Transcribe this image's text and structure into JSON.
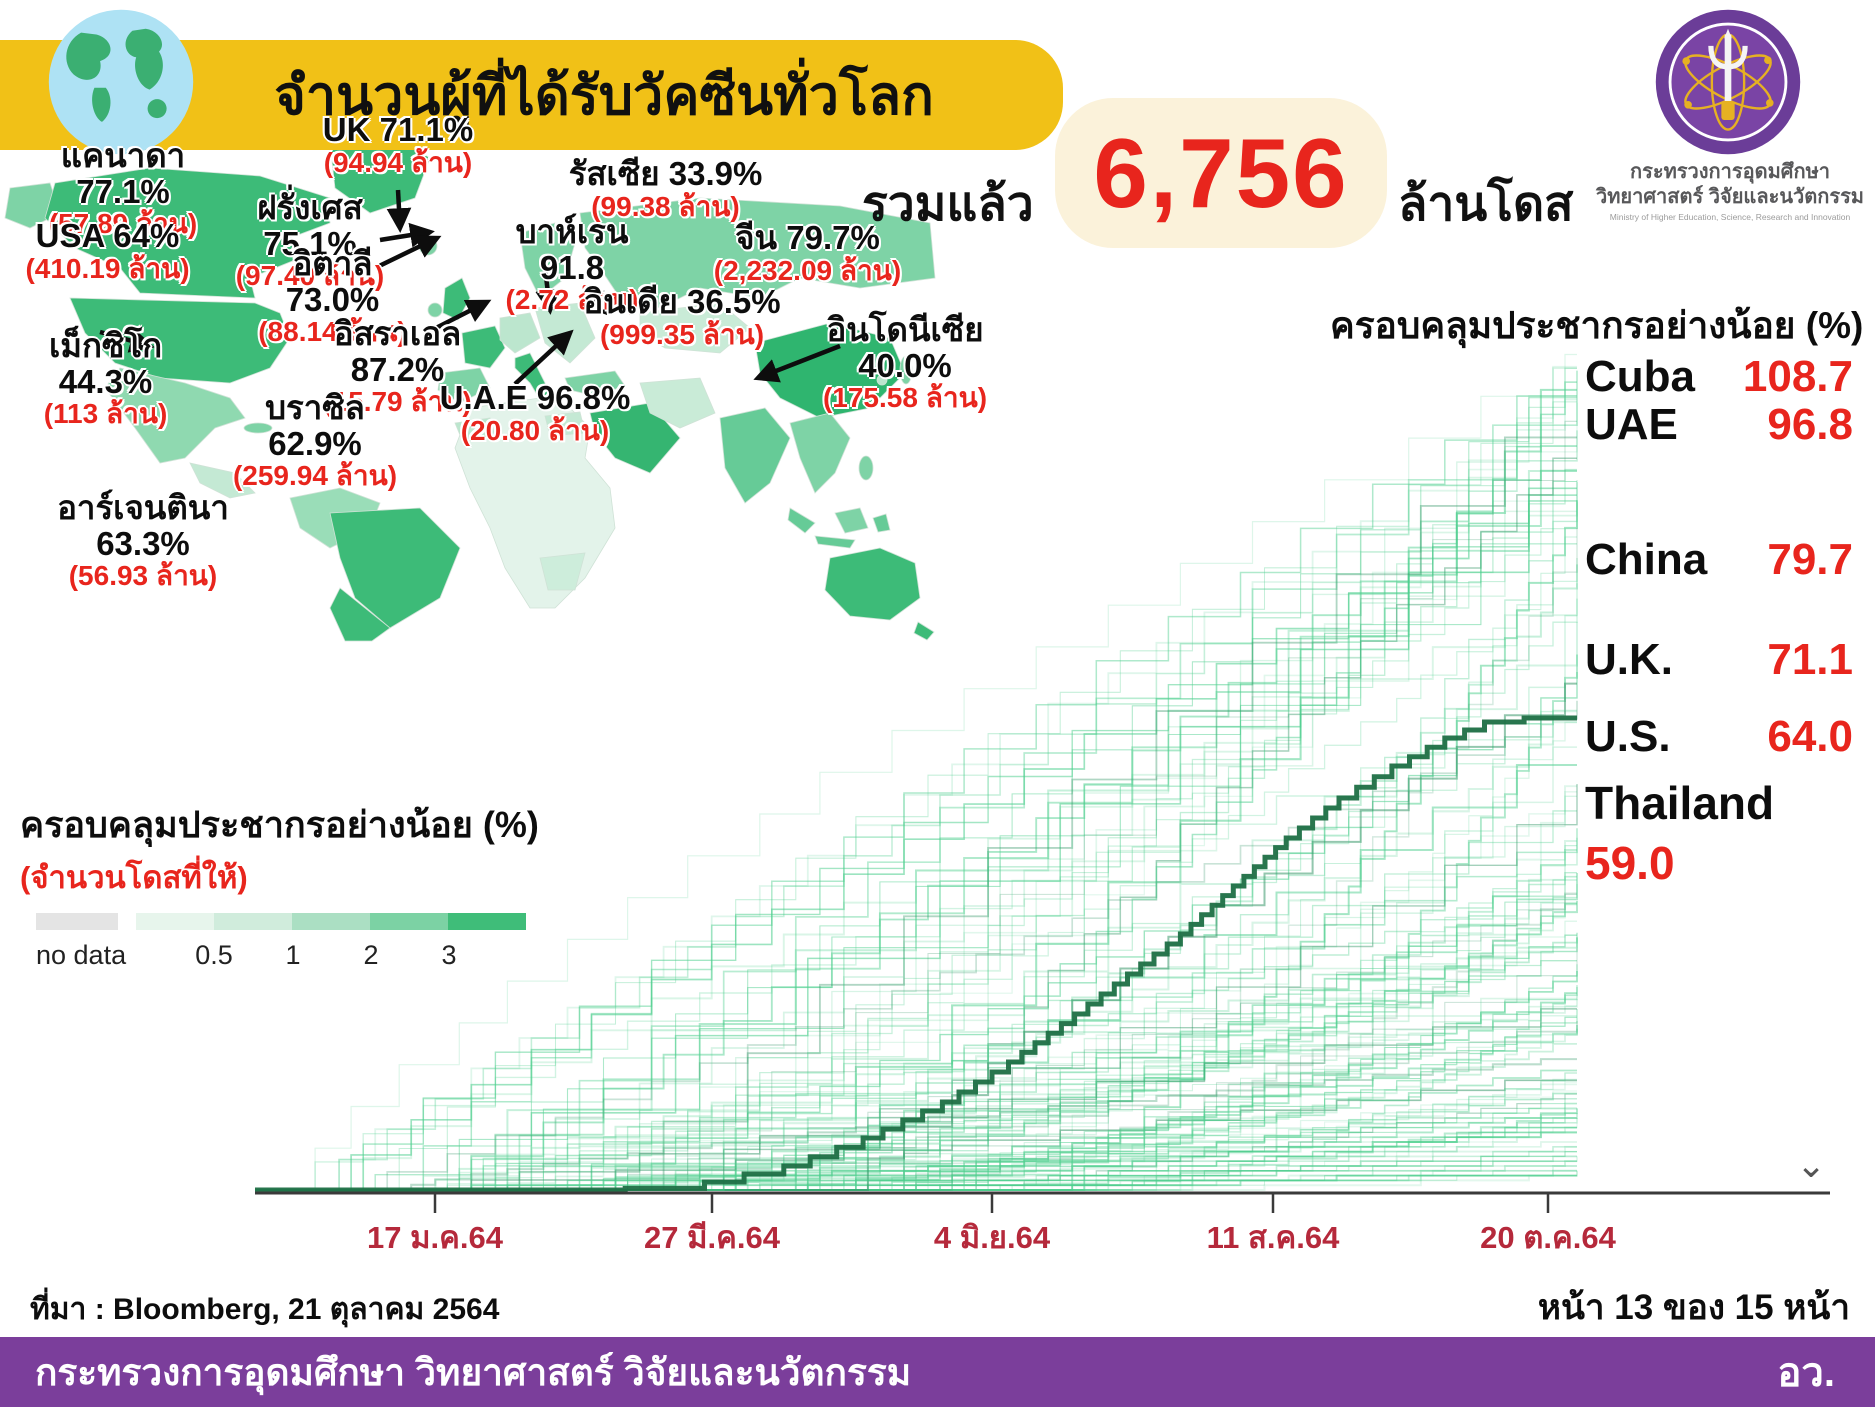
{
  "banner": {
    "title": "จำนวนผู้ที่ได้รับวัคซีนทั่วโลก",
    "color": "#F1C117"
  },
  "total": {
    "prefix": "รวมแล้ว",
    "value": "6,756",
    "suffix": "ล้านโดส",
    "value_color": "#E8251D",
    "box_color": "#FBF2DA"
  },
  "logo": {
    "ministry_line1": "กระทรวงการอุดมศึกษา",
    "ministry_line2": "วิทยาศาสตร์ วิจัยและนวัตกรรม",
    "ministry_line3": "Ministry of Higher Education, Science, Research and Innovation"
  },
  "map": {
    "labels": [
      {
        "name": "แคนาดา 77.1%",
        "doses": "(57.89 ล้าน)"
      },
      {
        "name": "UK 71.1%",
        "doses": "(94.94 ล้าน)"
      },
      {
        "name": "ฝรั่งเศส 75.1%",
        "doses": "(97.40 ล้าน)"
      },
      {
        "name": "USA 64%",
        "doses": "(410.19 ล้าน)"
      },
      {
        "name": "อิตาลี 73.0%",
        "doses": "(88.14 ล้าน)"
      },
      {
        "name": "รัสเซีย 33.9%",
        "doses": "(99.38 ล้าน)"
      },
      {
        "name": "บาห์เรน 91.8",
        "doses": "(2.72 ล้าน)"
      },
      {
        "name": "จีน 79.7%",
        "doses": "(2,232.09 ล้าน)"
      },
      {
        "name": "เม็กซิโก 44.3%",
        "doses": "(113 ล้าน)"
      },
      {
        "name": "อิสราเอล 87.2%",
        "doses": "(15.79 ล้าน)"
      },
      {
        "name": "อินเดีย 36.5%",
        "doses": "(999.35 ล้าน)"
      },
      {
        "name": "อินโดนีเซีย 40.0%",
        "doses": "(175.58 ล้าน)"
      },
      {
        "name": "บราซิล 62.9%",
        "doses": "(259.94 ล้าน)"
      },
      {
        "name": "U.A.E 96.8%",
        "doses": "(20.80 ล้าน)"
      },
      {
        "name": "อาร์เจนตินา 63.3%",
        "doses": "(56.93 ล้าน)"
      }
    ]
  },
  "coverage_legend": {
    "title": "ครอบคลุมประชากรอย่างน้อย (%)",
    "subtitle": "(จำนวนโดสที่ให้)",
    "no_data": "no data",
    "ticks": [
      "0.5",
      "1",
      "2",
      "3"
    ],
    "no_data_color": "#E4E4E4",
    "colors": [
      "#E7F5EC",
      "#D0ECDC",
      "#ABDFC3",
      "#7CD2A4",
      "#3FBD79"
    ]
  },
  "ranking": {
    "title": "ครอบคลุมประชากรอย่างน้อย (%)",
    "items": [
      {
        "country": "Cuba",
        "value": "108.7"
      },
      {
        "country": "UAE",
        "value": "96.8"
      },
      {
        "country": "China",
        "value": "79.7"
      },
      {
        "country": "U.K.",
        "value": "71.1"
      },
      {
        "country": "U.S.",
        "value": "64.0"
      },
      {
        "country": "Thailand",
        "value": "59.0"
      }
    ]
  },
  "chart_data": {
    "type": "line",
    "title": "ครอบคลุมประชากรอย่างน้อย (%)",
    "xlabel": "",
    "ylabel": "",
    "x_tick_labels": [
      "17 ม.ค.64",
      "27 มี.ค.64",
      "4 มิ.ย.64",
      "11 ส.ค.64",
      "20 ต.ค.64"
    ],
    "ylim": [
      0,
      110
    ],
    "grid": false,
    "legend_position": "right",
    "background_series": {
      "count": 140,
      "color": "#4ECF8E",
      "description": "Cumulative vaccine coverage (%) curves for ~140 countries, Jan 17 2021 - Oct 20 2021, staircase lines in light green"
    },
    "highlight_series": {
      "name": "Thailand",
      "color": "#1E6F45",
      "final_value": 59.0,
      "points": [
        [
          0.28,
          0.2
        ],
        [
          0.34,
          1
        ],
        [
          0.4,
          3
        ],
        [
          0.46,
          6.5
        ],
        [
          0.52,
          11
        ],
        [
          0.57,
          16
        ],
        [
          0.62,
          22
        ],
        [
          0.66,
          27
        ],
        [
          0.7,
          32
        ],
        [
          0.74,
          38
        ],
        [
          0.78,
          44
        ],
        [
          0.82,
          49
        ],
        [
          0.86,
          53
        ],
        [
          0.9,
          56.5
        ],
        [
          0.93,
          58.5
        ],
        [
          0.96,
          59
        ],
        [
          1.0,
          59
        ]
      ]
    },
    "annotations": [
      {
        "label": "Cuba",
        "value": 108.7
      },
      {
        "label": "UAE",
        "value": 96.8
      },
      {
        "label": "China",
        "value": 79.7
      },
      {
        "label": "U.K.",
        "value": 71.1
      },
      {
        "label": "U.S.",
        "value": 64.0
      },
      {
        "label": "Thailand",
        "value": 59.0
      }
    ]
  },
  "source": {
    "text": "ที่มา : Bloomberg, 21 ตุลาคม 2564"
  },
  "pagination": {
    "text": "หน้า 13 ของ 15 หน้า"
  },
  "footer": {
    "ministry": "กระทรวงการอุดมศึกษา วิทยาศาสตร์ วิจัยและนวัตกรรม",
    "abbr": "อว.",
    "color": "#7B3E9B"
  },
  "icons": {
    "chevron_down": "⌄"
  }
}
